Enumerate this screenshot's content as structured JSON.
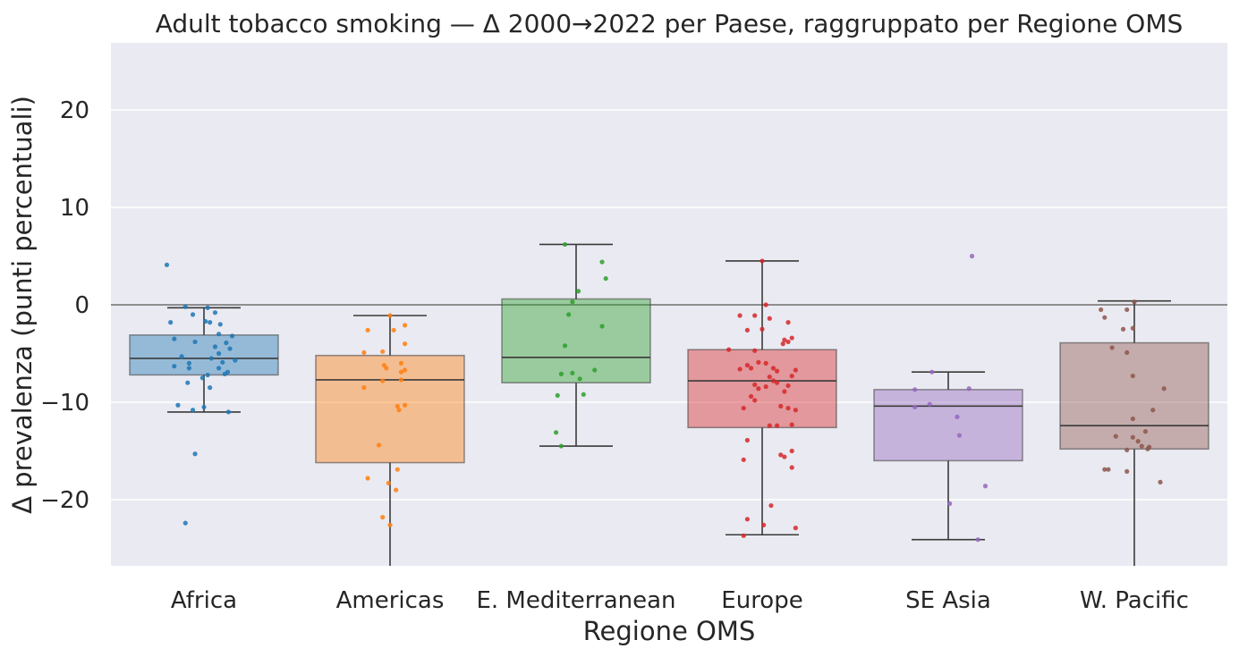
{
  "chart_data": {
    "type": "box",
    "title": "Adult tobacco smoking — Δ 2000→2022 per Paese, raggruppato per Regione OMS",
    "xlabel": "Regione OMS",
    "ylabel": "Δ prevalenza (punti percentuali)",
    "ylim": [
      -27,
      27
    ],
    "yticks": [
      20,
      10,
      0,
      -10,
      -20
    ],
    "ytick_labels": [
      "20",
      "10",
      "0",
      "−10",
      "−20"
    ],
    "grid": true,
    "reference_line_y": 0,
    "categories": [
      "Africa",
      "Americas",
      "E. Mediterranean",
      "Europe",
      "SE Asia",
      "W. Pacific"
    ],
    "colors": [
      "#1f77b4",
      "#ff7f0e",
      "#2ca02c",
      "#d62728",
      "#9467bd",
      "#8c564b"
    ],
    "boxes": [
      {
        "name": "Africa",
        "whisker_low": -11.0,
        "q1": -7.2,
        "median": -5.5,
        "q3": -3.1,
        "whisker_high": -0.3
      },
      {
        "name": "Americas",
        "whisker_low": -27.0,
        "q1": -16.2,
        "median": -7.7,
        "q3": -5.2,
        "whisker_high": -1.1
      },
      {
        "name": "E. Mediterranean",
        "whisker_low": -14.5,
        "q1": -8.0,
        "median": -5.4,
        "q3": 0.6,
        "whisker_high": 6.2
      },
      {
        "name": "Europe",
        "whisker_low": -23.6,
        "q1": -12.6,
        "median": -7.8,
        "q3": -4.6,
        "whisker_high": 4.5
      },
      {
        "name": "SE Asia",
        "whisker_low": -24.1,
        "q1": -16.0,
        "median": -10.4,
        "q3": -8.7,
        "whisker_high": -6.9
      },
      {
        "name": "W. Pacific",
        "whisker_low": -26.8,
        "q1": -14.8,
        "median": -12.4,
        "q3": -3.9,
        "whisker_high": 0.4
      }
    ],
    "points": [
      {
        "name": "Africa",
        "values": [
          [
            -0.5,
            4.1
          ],
          [
            -0.25,
            -0.2
          ],
          [
            0.05,
            -0.3
          ],
          [
            0.15,
            -0.8
          ],
          [
            -0.15,
            -1.0
          ],
          [
            -0.45,
            -1.8
          ],
          [
            0.02,
            -1.7
          ],
          [
            0.08,
            -1.8
          ],
          [
            0.22,
            -2.0
          ],
          [
            0.2,
            -3.0
          ],
          [
            0.38,
            -3.2
          ],
          [
            -0.4,
            -3.5
          ],
          [
            -0.12,
            -3.8
          ],
          [
            0.3,
            -3.9
          ],
          [
            0.15,
            -4.3
          ],
          [
            0.35,
            -4.5
          ],
          [
            -0.3,
            -5.3
          ],
          [
            0.2,
            -5.0
          ],
          [
            0.42,
            -5.7
          ],
          [
            0.1,
            -5.5
          ],
          [
            -0.2,
            -6.0
          ],
          [
            0.25,
            -5.9
          ],
          [
            -0.4,
            -6.3
          ],
          [
            -0.2,
            -6.5
          ],
          [
            0.2,
            -6.5
          ],
          [
            0.32,
            -6.9
          ],
          [
            0.28,
            -7.1
          ],
          [
            0.05,
            -7.2
          ],
          [
            -0.02,
            -7.5
          ],
          [
            -0.22,
            -8.0
          ],
          [
            0.08,
            -8.5
          ],
          [
            -0.35,
            -10.3
          ],
          [
            0.0,
            -10.5
          ],
          [
            -0.15,
            -10.8
          ],
          [
            0.33,
            -11.0
          ],
          [
            -0.12,
            -15.3
          ],
          [
            -0.25,
            -22.4
          ]
        ]
      },
      {
        "name": "Americas",
        "values": [
          [
            0.0,
            -1.1
          ],
          [
            0.2,
            -2.1
          ],
          [
            -0.3,
            -2.6
          ],
          [
            0.05,
            -2.6
          ],
          [
            0.2,
            -4.0
          ],
          [
            -0.35,
            -4.9
          ],
          [
            -0.1,
            -4.8
          ],
          [
            0.15,
            -6.0
          ],
          [
            -0.08,
            -6.2
          ],
          [
            -0.05,
            -6.5
          ],
          [
            0.2,
            -6.7
          ],
          [
            0.15,
            -6.9
          ],
          [
            -0.1,
            -7.8
          ],
          [
            0.15,
            -7.7
          ],
          [
            -0.35,
            -8.5
          ],
          [
            0.2,
            -10.3
          ],
          [
            0.1,
            -10.4
          ],
          [
            0.12,
            -10.8
          ],
          [
            -0.15,
            -14.4
          ],
          [
            0.1,
            -16.9
          ],
          [
            -0.3,
            -17.8
          ],
          [
            -0.02,
            -18.3
          ],
          [
            0.08,
            -19.0
          ],
          [
            -0.1,
            -21.8
          ],
          [
            0.0,
            -22.6
          ]
        ]
      },
      {
        "name": "E. Mediterranean",
        "values": [
          [
            -0.15,
            6.2
          ],
          [
            0.35,
            4.4
          ],
          [
            0.4,
            2.7
          ],
          [
            0.03,
            1.4
          ],
          [
            -0.05,
            0.3
          ],
          [
            -0.1,
            -1.0
          ],
          [
            0.35,
            -2.2
          ],
          [
            -0.15,
            -4.2
          ],
          [
            0.25,
            -6.7
          ],
          [
            -0.2,
            -7.1
          ],
          [
            -0.05,
            -7.0
          ],
          [
            0.05,
            -7.6
          ],
          [
            0.1,
            -9.2
          ],
          [
            -0.25,
            -9.3
          ],
          [
            -0.27,
            -13.1
          ],
          [
            -0.2,
            -14.5
          ]
        ]
      },
      {
        "name": "Europe",
        "values": [
          [
            0.0,
            4.5
          ],
          [
            0.05,
            0.0
          ],
          [
            -0.3,
            -1.1
          ],
          [
            -0.1,
            -1.1
          ],
          [
            0.1,
            -1.4
          ],
          [
            0.35,
            -1.8
          ],
          [
            0.0,
            -2.5
          ],
          [
            -0.2,
            -2.6
          ],
          [
            0.4,
            -3.4
          ],
          [
            0.3,
            -3.6
          ],
          [
            0.35,
            -3.8
          ],
          [
            0.28,
            -4.0
          ],
          [
            -0.45,
            -4.6
          ],
          [
            -0.1,
            -4.7
          ],
          [
            -0.05,
            -5.9
          ],
          [
            0.05,
            -6.0
          ],
          [
            -0.2,
            -6.2
          ],
          [
            -0.15,
            -6.5
          ],
          [
            0.15,
            -6.5
          ],
          [
            -0.3,
            -6.6
          ],
          [
            0.2,
            -6.8
          ],
          [
            0.45,
            -6.7
          ],
          [
            0.4,
            -7.3
          ],
          [
            0.1,
            -7.4
          ],
          [
            0.15,
            -7.8
          ],
          [
            0.2,
            -8.0
          ],
          [
            -0.1,
            -8.2
          ],
          [
            0.35,
            -8.3
          ],
          [
            -0.05,
            -8.6
          ],
          [
            0.05,
            -8.4
          ],
          [
            0.3,
            -8.9
          ],
          [
            -0.15,
            -9.4
          ],
          [
            -0.1,
            -9.8
          ],
          [
            0.25,
            -10.4
          ],
          [
            -0.25,
            -10.6
          ],
          [
            0.35,
            -10.6
          ],
          [
            0.45,
            -10.8
          ],
          [
            0.4,
            -12.3
          ],
          [
            0.1,
            -12.4
          ],
          [
            0.2,
            -12.4
          ],
          [
            0.4,
            -15.0
          ],
          [
            0.25,
            -15.4
          ],
          [
            0.3,
            -15.6
          ],
          [
            -0.2,
            -13.9
          ],
          [
            -0.25,
            -15.9
          ],
          [
            0.4,
            -16.7
          ],
          [
            0.12,
            -20.6
          ],
          [
            -0.2,
            -22.0
          ],
          [
            0.02,
            -22.6
          ],
          [
            0.45,
            -22.9
          ],
          [
            -0.25,
            -23.7
          ]
        ]
      },
      {
        "name": "SE Asia",
        "values": [
          [
            0.32,
            5.0
          ],
          [
            -0.22,
            -6.9
          ],
          [
            -0.45,
            -8.7
          ],
          [
            0.28,
            -8.6
          ],
          [
            -0.45,
            -10.5
          ],
          [
            -0.25,
            -10.2
          ],
          [
            0.12,
            -11.5
          ],
          [
            0.15,
            -13.4
          ],
          [
            0.5,
            -18.6
          ],
          [
            0.02,
            -20.4
          ],
          [
            0.4,
            -24.1
          ]
        ]
      },
      {
        "name": "W. Pacific",
        "values": [
          [
            0.0,
            0.3
          ],
          [
            -0.45,
            -0.5
          ],
          [
            -0.1,
            -0.5
          ],
          [
            -0.4,
            -1.3
          ],
          [
            -0.02,
            -2.4
          ],
          [
            -0.15,
            -2.5
          ],
          [
            -0.3,
            -4.4
          ],
          [
            -0.1,
            -4.9
          ],
          [
            -0.02,
            -7.3
          ],
          [
            0.4,
            -8.6
          ],
          [
            0.25,
            -10.8
          ],
          [
            -0.02,
            -11.7
          ],
          [
            -0.25,
            -13.5
          ],
          [
            -0.02,
            -13.6
          ],
          [
            0.15,
            -13.0
          ],
          [
            0.05,
            -14.0
          ],
          [
            0.1,
            -14.5
          ],
          [
            0.2,
            -14.6
          ],
          [
            0.18,
            -14.8
          ],
          [
            -0.1,
            -14.9
          ],
          [
            -0.4,
            -16.9
          ],
          [
            -0.35,
            -16.9
          ],
          [
            -0.1,
            -17.1
          ],
          [
            0.35,
            -18.2
          ],
          [
            -0.28,
            -26.8
          ]
        ]
      }
    ]
  }
}
